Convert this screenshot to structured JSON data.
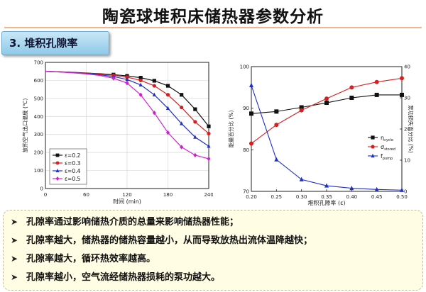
{
  "title": "陶瓷球堆积床储热器参数分析",
  "section_label": "3. 堆积孔隙率",
  "bullets": [
    "孔隙率通过影响储热介质的总量来影响储热器性能；",
    "孔隙率越大，储热器的储热容量越小，从而导致放热出流体温降越快；",
    "孔隙率越大，循环热效率越高。",
    "孔隙率越小，空气流经储热器损耗的泵功越大。"
  ],
  "bullet_marker": "➤",
  "chart_data": [
    {
      "type": "line",
      "xlabel": "时间 (min)",
      "ylabel": "放热空气出口温度 (℃)",
      "xlim": [
        0,
        240
      ],
      "ylim": [
        0,
        700
      ],
      "xticks": [
        0,
        60,
        120,
        180,
        240
      ],
      "yticks": [
        0,
        100,
        200,
        300,
        400,
        500,
        600,
        700
      ],
      "grid": true,
      "legend_position": "bottom-left",
      "x": [
        0,
        20,
        40,
        60,
        80,
        100,
        120,
        140,
        160,
        180,
        200,
        220,
        240
      ],
      "series": [
        {
          "name": "ε=0.2",
          "color": "#111111",
          "marker": "square",
          "values": [
            650,
            648,
            645,
            641,
            637,
            632,
            625,
            615,
            598,
            570,
            520,
            440,
            345
          ]
        },
        {
          "name": "ε=0.3",
          "color": "#d62020",
          "marker": "circle",
          "values": [
            650,
            648,
            644,
            640,
            635,
            628,
            618,
            600,
            570,
            520,
            450,
            370,
            305
          ]
        },
        {
          "name": "ε=0.4",
          "color": "#2030c8",
          "marker": "triangle",
          "values": [
            650,
            647,
            643,
            638,
            631,
            621,
            605,
            575,
            520,
            445,
            360,
            285,
            235
          ]
        },
        {
          "name": "ε=0.5",
          "color": "#d020d0",
          "marker": "diamond",
          "values": [
            650,
            647,
            642,
            636,
            627,
            612,
            585,
            520,
            420,
            310,
            230,
            185,
            165
          ]
        }
      ]
    },
    {
      "type": "line",
      "xlabel": "堆积孔隙率 (ε)",
      "ylabel": "能量百分比 (%)",
      "ylabel_right": "泵功损失百分比 (%)",
      "xlim": [
        0.2,
        0.5
      ],
      "ylim": [
        70,
        100
      ],
      "ylim_right": [
        0,
        40
      ],
      "xticks": [
        0.2,
        0.25,
        0.3,
        0.35,
        0.4,
        0.45,
        0.5
      ],
      "yticks": [
        70,
        80,
        90,
        100
      ],
      "yticks_right": [
        0,
        10,
        20,
        30,
        40
      ],
      "grid": false,
      "legend_position": "center-right",
      "x": [
        0.2,
        0.25,
        0.3,
        0.35,
        0.4,
        0.45,
        0.5
      ],
      "series": [
        {
          "name": "η",
          "name_sub": "cycle",
          "axis": "left",
          "color": "#111111",
          "marker": "square",
          "values": [
            88.7,
            89.2,
            90.2,
            91.3,
            92.5,
            93.2,
            93.2
          ]
        },
        {
          "name": "σ",
          "name_sub": "stored",
          "axis": "left",
          "color": "#d62020",
          "marker": "circle",
          "values": [
            81.5,
            86.0,
            89.5,
            92.3,
            95.0,
            96.3,
            97.2
          ]
        },
        {
          "name": "f",
          "name_sub": "pump",
          "axis": "right",
          "color": "#2030c8",
          "marker": "triangle",
          "values": [
            34.0,
            10.2,
            3.8,
            1.8,
            1.0,
            0.6,
            0.4
          ]
        }
      ]
    }
  ]
}
